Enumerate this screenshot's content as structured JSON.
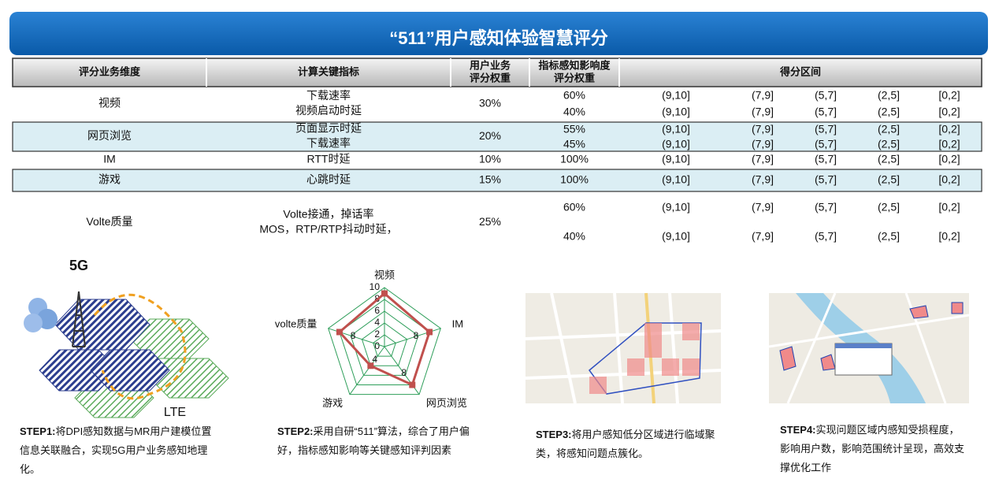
{
  "header": {
    "title": "“511”用户感知体验智慧评分"
  },
  "table": {
    "headers": [
      [
        "评分业务维度"
      ],
      [
        "计算关键指标"
      ],
      [
        "用户业务",
        "评分权重"
      ],
      [
        "指标感知影响度",
        "评分权重"
      ],
      [
        "得分区间"
      ]
    ],
    "rows": [
      {
        "dimension": "视频",
        "indicators": [
          "下载速率",
          "视频启动时延"
        ],
        "weight": "30%",
        "subrows": [
          {
            "impact": "60%",
            "ranges": [
              "(9,10]",
              "(7,9]",
              "(5,7]",
              "(2,5]",
              "[0,2]"
            ]
          },
          {
            "impact": "40%",
            "ranges": [
              "(9,10]",
              "(7,9]",
              "(5,7]",
              "(2,5]",
              "[0,2]"
            ]
          }
        ]
      },
      {
        "dimension": "网页浏览",
        "indicators": [
          "页面显示时延",
          "下载速率"
        ],
        "weight": "20%",
        "subrows": [
          {
            "impact": "55%",
            "ranges": [
              "(9,10]",
              "(7,9]",
              "(5,7]",
              "(2,5]",
              "[0,2]"
            ]
          },
          {
            "impact": "45%",
            "ranges": [
              "(9,10]",
              "(7,9]",
              "(5,7]",
              "(2,5]",
              "[0,2]"
            ]
          }
        ]
      },
      {
        "dimension": "IM",
        "indicators": [
          "RTT时延"
        ],
        "weight": "10%",
        "subrows": [
          {
            "impact": "100%",
            "ranges": [
              "(9,10]",
              "(7,9]",
              "(5,7]",
              "(2,5]",
              "[0,2]"
            ]
          }
        ]
      },
      {
        "dimension": "游戏",
        "indicators": [
          "心跳时延"
        ],
        "weight": "15%",
        "subrows": [
          {
            "impact": "100%",
            "ranges": [
              "(9,10]",
              "(7,9]",
              "(5,7]",
              "(2,5]",
              "[0,2]"
            ]
          }
        ]
      },
      {
        "dimension": "Volte质量",
        "indicators": [
          "Volte接通，掉话率",
          "MOS，RTP/RTP抖动时延，"
        ],
        "weight": "25%",
        "subrows": [
          {
            "impact": "60%",
            "ranges": [
              "(9,10]",
              "(7,9]",
              "(5,7]",
              "(2,5]",
              "[0,2]"
            ]
          },
          {
            "impact": "40%",
            "ranges": [
              "(9,10]",
              "(7,9]",
              "(5,7]",
              "(2,5]",
              "[0,2]"
            ]
          }
        ]
      }
    ]
  },
  "step1_figure": {
    "labels": [
      "5G",
      "LTE"
    ]
  },
  "chart_data": {
    "type": "radar",
    "categories": [
      "视频",
      "IM",
      "网页浏览",
      "游戏",
      "volte质量"
    ],
    "values": [
      9,
      8,
      8,
      4,
      8
    ],
    "value_labels": [
      null,
      "8",
      "8",
      "4",
      "8"
    ],
    "rlim": [
      0,
      10
    ],
    "rticks": [
      0,
      2,
      4,
      6,
      8,
      10
    ],
    "color": "#c0504d",
    "grid_color": "#2e9e5a"
  },
  "steps": [
    {
      "label": "STEP1:",
      "text": "将DPI感知数据与MR用户建模位置信息关联融合，实现5G用户业务感知地理化。"
    },
    {
      "label": "STEP2:",
      "text": "采用自研“511”算法，综合了用户偏好，指标感知影响等关键感知评判因素"
    },
    {
      "label": "STEP3:",
      "text": "将用户感知低分区域进行临域聚类，将感知问题点簇化。"
    },
    {
      "label": "STEP4:",
      "text": "实现问题区域内感知受损程度，影响用户数，影响范围统计呈现，高效支撑优化工作"
    }
  ]
}
